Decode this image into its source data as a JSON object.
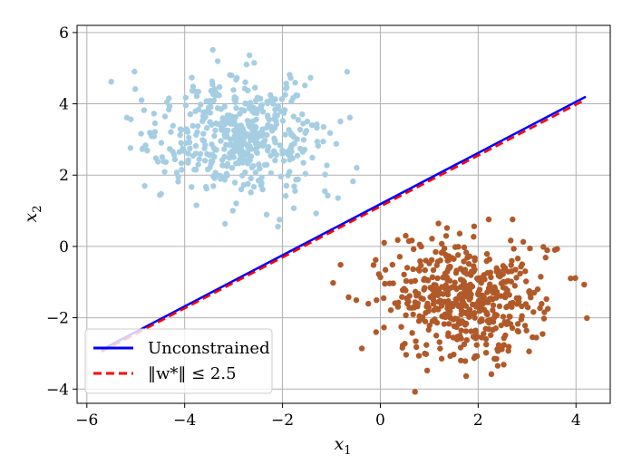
{
  "chart_data": {
    "type": "scatter",
    "xlabel": "x1",
    "ylabel": "x2",
    "xlim": [
      -6.2,
      4.7
    ],
    "ylim": [
      -4.4,
      6.2
    ],
    "xticks": [
      -6,
      -4,
      -2,
      0,
      2,
      4
    ],
    "yticks": [
      -4,
      -2,
      0,
      2,
      4,
      6
    ],
    "xtick_labels": [
      "−6",
      "−4",
      "−2",
      "0",
      "2",
      "4"
    ],
    "ytick_labels": [
      "−4",
      "−2",
      "0",
      "2",
      "4",
      "6"
    ],
    "grid": true,
    "legend_position": "lower-left",
    "clusters": [
      {
        "color": "#a6cee3",
        "center": [
          -2.9,
          3.1
        ],
        "spread": [
          0.85,
          0.85
        ],
        "n": 500,
        "seed": 17
      },
      {
        "color": "#b15928",
        "center": [
          1.7,
          -1.5
        ],
        "spread": [
          0.85,
          0.85
        ],
        "n": 500,
        "seed": 91
      }
    ],
    "series": [
      {
        "name": "Unconstrained",
        "color": "#0000ff",
        "style": "solid",
        "x": [
          -5.7,
          4.2
        ],
        "y": [
          -2.9,
          4.2
        ]
      },
      {
        "name": "‖w*‖ ≤ 2.5",
        "color": "#ff0000",
        "style": "dashed",
        "x": [
          -5.7,
          4.2
        ],
        "y": [
          -2.95,
          4.12
        ]
      }
    ]
  }
}
